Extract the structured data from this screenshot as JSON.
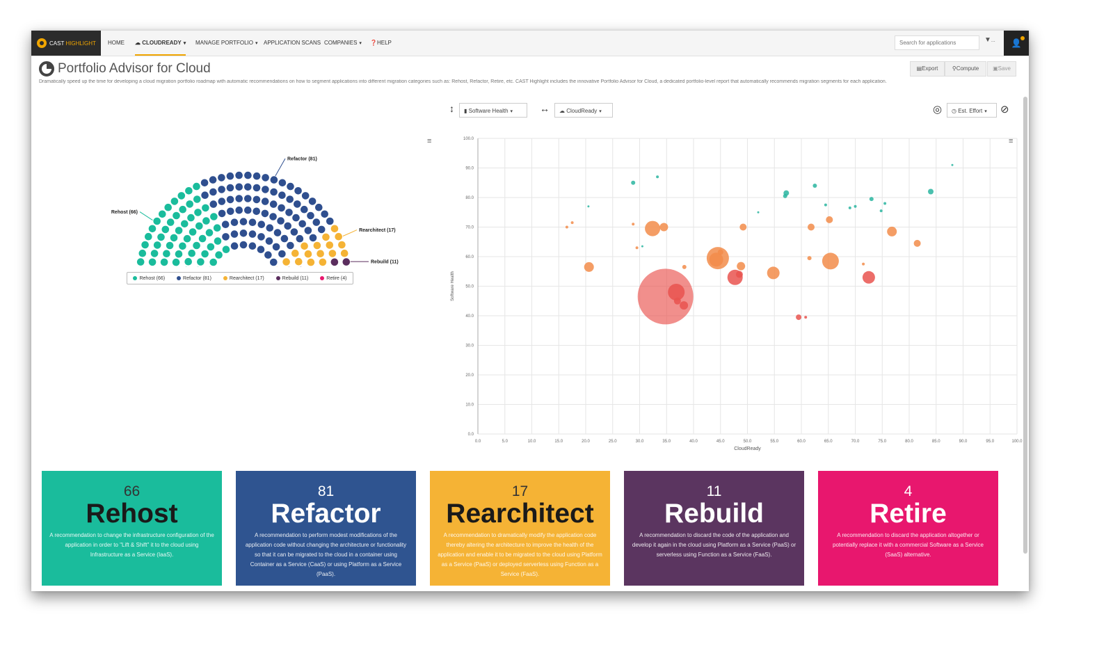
{
  "nav": {
    "logo_prefix": "CAST",
    "logo_suffix": "HIGHLIGHT",
    "items": [
      {
        "label": "HOME"
      },
      {
        "label": "CLOUDREADY"
      },
      {
        "label": "MANAGE PORTFOLIO"
      },
      {
        "label": "APPLICATION SCANS"
      },
      {
        "label": "COMPANIES"
      },
      {
        "label": "HELP"
      }
    ],
    "search_placeholder": "Search for applications",
    "filter_label": "..."
  },
  "page": {
    "title": "Portfolio Advisor for Cloud",
    "description": "Dramatically speed up the time for developing a cloud migration portfolio roadmap with automatic recommendations on how to segment applications into different migration categories such as: Rehost, Refactor, Retire, etc. CAST Highlight includes the innovative Portfolio Advisor for Cloud, a dedicated portfolio-level report that automatically recommends migration segments for each application.",
    "buttons": {
      "export": "Export",
      "compute": "Compute",
      "save": "Save"
    }
  },
  "selectors": {
    "y_axis": "Software Health",
    "x_axis": "CloudReady",
    "size": "Est. Effort"
  },
  "colors": {
    "rehost": "#1abc9c",
    "refactor": "#2f4f8f",
    "rearchitect": "#f5b335",
    "rebuild": "#5b2e5e",
    "retire": "#e8176e",
    "bubble": "#f28c4a",
    "bubble_red": "#e9534f",
    "bubble_teal": "#2ab5a0"
  },
  "chart_data": [
    {
      "type": "pie",
      "variant": "parliament",
      "title": "",
      "categories": [
        "Rehost",
        "Refactor",
        "Rearchitect",
        "Rebuild",
        "Retire"
      ],
      "values": [
        66,
        81,
        17,
        11,
        4
      ],
      "slice_labels": [
        "Rehost (66)",
        "Refactor (81)",
        "Rearchitect (17)",
        "Rebuild (11)",
        "Retire (4)"
      ],
      "legend": [
        "Rehost (66)",
        "Refactor (81)",
        "Rearchitect (17)",
        "Rebuild (11)",
        "Retire (4)"
      ]
    },
    {
      "type": "scatter",
      "title": "",
      "xlabel": "CloudReady",
      "ylabel": "Software Health",
      "xlim": [
        0,
        100
      ],
      "ylim": [
        0,
        100
      ],
      "xticks": [
        "0.0",
        "5.0",
        "10.0",
        "15.0",
        "20.0",
        "25.0",
        "30.0",
        "35.0",
        "40.0",
        "45.0",
        "50.0",
        "55.0",
        "60.0",
        "65.0",
        "70.0",
        "75.0",
        "80.0",
        "85.0",
        "90.0",
        "95.0",
        "100.0"
      ],
      "yticks": [
        "0.0",
        "10.0",
        "20.0",
        "30.0",
        "40.0",
        "50.0",
        "60.0",
        "70.0",
        "80.0",
        "90.0",
        "100.0"
      ],
      "grid": true,
      "points": [
        {
          "x": 34.8,
          "y": 46.5,
          "r": 40,
          "c": "red"
        },
        {
          "x": 36.8,
          "y": 48.0,
          "r": 12,
          "c": "red"
        },
        {
          "x": 38.2,
          "y": 43.5,
          "r": 6,
          "c": "red"
        },
        {
          "x": 37.0,
          "y": 45.0,
          "r": 5,
          "c": "red"
        },
        {
          "x": 32.4,
          "y": 69.5,
          "r": 11,
          "c": "orange"
        },
        {
          "x": 34.5,
          "y": 70.0,
          "r": 6,
          "c": "orange"
        },
        {
          "x": 20.6,
          "y": 56.5,
          "r": 7,
          "c": "orange"
        },
        {
          "x": 44.5,
          "y": 59.5,
          "r": 16,
          "c": "orange"
        },
        {
          "x": 44.2,
          "y": 59.0,
          "r": 10,
          "c": "orange"
        },
        {
          "x": 45.0,
          "y": 61.5,
          "r": 4,
          "c": "orange"
        },
        {
          "x": 47.7,
          "y": 53.0,
          "r": 11,
          "c": "red"
        },
        {
          "x": 48.5,
          "y": 54.0,
          "r": 5,
          "c": "red"
        },
        {
          "x": 48.8,
          "y": 56.8,
          "r": 6,
          "c": "orange"
        },
        {
          "x": 49.2,
          "y": 70.0,
          "r": 5,
          "c": "orange"
        },
        {
          "x": 54.8,
          "y": 54.5,
          "r": 9,
          "c": "orange"
        },
        {
          "x": 61.8,
          "y": 70.0,
          "r": 5,
          "c": "orange"
        },
        {
          "x": 65.4,
          "y": 58.5,
          "r": 12,
          "c": "orange"
        },
        {
          "x": 65.2,
          "y": 72.5,
          "r": 5,
          "c": "orange"
        },
        {
          "x": 72.5,
          "y": 53.0,
          "r": 9,
          "c": "red"
        },
        {
          "x": 76.8,
          "y": 68.5,
          "r": 7,
          "c": "orange"
        },
        {
          "x": 81.5,
          "y": 64.5,
          "r": 5,
          "c": "orange"
        },
        {
          "x": 59.5,
          "y": 39.5,
          "r": 4,
          "c": "red"
        },
        {
          "x": 60.8,
          "y": 39.5,
          "r": 2,
          "c": "red"
        },
        {
          "x": 38.3,
          "y": 56.5,
          "r": 3,
          "c": "orange"
        },
        {
          "x": 61.5,
          "y": 59.5,
          "r": 3,
          "c": "orange"
        },
        {
          "x": 71.5,
          "y": 57.5,
          "r": 2,
          "c": "orange"
        },
        {
          "x": 17.5,
          "y": 71.5,
          "r": 2,
          "c": "orange"
        },
        {
          "x": 16.5,
          "y": 70.0,
          "r": 2,
          "c": "orange"
        },
        {
          "x": 28.8,
          "y": 71.0,
          "r": 2,
          "c": "orange"
        },
        {
          "x": 29.5,
          "y": 63.0,
          "r": 2,
          "c": "orange"
        },
        {
          "x": 28.8,
          "y": 85.0,
          "r": 3,
          "c": "teal"
        },
        {
          "x": 33.3,
          "y": 87.0,
          "r": 2,
          "c": "teal"
        },
        {
          "x": 57.2,
          "y": 81.5,
          "r": 4,
          "c": "teal"
        },
        {
          "x": 57.0,
          "y": 80.5,
          "r": 3,
          "c": "teal"
        },
        {
          "x": 62.5,
          "y": 84.0,
          "r": 3,
          "c": "teal"
        },
        {
          "x": 73.0,
          "y": 79.5,
          "r": 3,
          "c": "teal"
        },
        {
          "x": 84.0,
          "y": 82.0,
          "r": 4,
          "c": "teal"
        },
        {
          "x": 74.8,
          "y": 75.5,
          "r": 2,
          "c": "teal"
        },
        {
          "x": 75.5,
          "y": 78.0,
          "r": 2,
          "c": "teal"
        },
        {
          "x": 69.0,
          "y": 76.5,
          "r": 2,
          "c": "teal"
        },
        {
          "x": 70.0,
          "y": 77.0,
          "r": 2,
          "c": "teal"
        },
        {
          "x": 64.5,
          "y": 77.5,
          "r": 2,
          "c": "teal"
        },
        {
          "x": 52.0,
          "y": 75.0,
          "r": 1.5,
          "c": "teal"
        },
        {
          "x": 20.5,
          "y": 77.0,
          "r": 1.5,
          "c": "teal"
        },
        {
          "x": 30.5,
          "y": 63.5,
          "r": 1.5,
          "c": "teal"
        },
        {
          "x": 88.0,
          "y": 91.0,
          "r": 1.5,
          "c": "teal"
        }
      ]
    }
  ],
  "cards": [
    {
      "count": "66",
      "name": "Rehost",
      "desc": "A recommendation to change the infrastructure configuration of the application in order to \"Lift & Shift\" it to the cloud using Infrastructure as a Service (IaaS)."
    },
    {
      "count": "81",
      "name": "Refactor",
      "desc": "A recommendation to perform modest modifications of the application code without changing the architecture or functionality so that it can be migrated to the cloud in a container using Container as a Service (CaaS) or using Platform as a Service (PaaS)."
    },
    {
      "count": "17",
      "name": "Rearchitect",
      "desc": "A recommendation to dramatically modify the application code thereby altering the architecture to improve the health of the application and enable it to be migrated to the cloud using Platform as a Service (PaaS) or deployed serverless using Function as a Service (FaaS)."
    },
    {
      "count": "11",
      "name": "Rebuild",
      "desc": "A recommendation to discard the code of the application and develop it again in the cloud using Platform as a Service (PaaS) or serverless using Function as a Service (FaaS)."
    },
    {
      "count": "4",
      "name": "Retire",
      "desc": "A recommendation to discard the application altogether or potentially replace it with a commercial Software as a Service (SaaS) alternative."
    }
  ]
}
